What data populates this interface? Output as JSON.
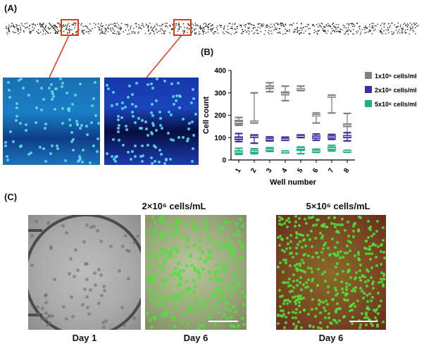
{
  "panels": {
    "a_label": "(A)",
    "b_label": "(B)",
    "c_label": "(C)"
  },
  "colors": {
    "dapi_cell": "#5fe0e6",
    "live_green": "#4ee23a",
    "box_red": "#e43a1a",
    "series_1": "#808080",
    "series_2": "#3a2f9e",
    "series_5": "#1fae86"
  },
  "panel_c": {
    "group1_title": "2×10⁶ cells/mL",
    "group2_title": "5×10⁶ cells/mL",
    "captions": [
      "Day 1",
      "Day 6",
      "Day 6"
    ]
  },
  "chart_data": {
    "type": "box",
    "xlabel": "Well number",
    "ylabel": "Cell count",
    "categories": [
      "1",
      "2",
      "3",
      "4",
      "5",
      "6",
      "7",
      "8"
    ],
    "ylim": [
      0,
      400
    ],
    "yticks": [
      0,
      100,
      200,
      300,
      400
    ],
    "legend_position": "right",
    "series": [
      {
        "name": "1x10⁶ cells/ml",
        "color": "#808080",
        "boxes": [
          {
            "min": 155,
            "q1": 160,
            "median": 168,
            "q3": 178,
            "max": 190
          },
          {
            "min": 165,
            "q1": 168,
            "median": 170,
            "q3": 175,
            "max": 300
          },
          {
            "min": 305,
            "q1": 318,
            "median": 325,
            "q3": 332,
            "max": 345
          },
          {
            "min": 265,
            "q1": 290,
            "median": 296,
            "q3": 305,
            "max": 330
          },
          {
            "min": 310,
            "q1": 312,
            "median": 316,
            "q3": 320,
            "max": 330
          },
          {
            "min": 165,
            "q1": 195,
            "median": 198,
            "q3": 203,
            "max": 210
          },
          {
            "min": 210,
            "q1": 280,
            "median": 285,
            "q3": 288,
            "max": 290
          },
          {
            "min": 100,
            "q1": 148,
            "median": 155,
            "q3": 162,
            "max": 208
          }
        ]
      },
      {
        "name": "2x10⁶ cells/ml",
        "color": "#3a2f9e",
        "boxes": [
          {
            "min": 82,
            "q1": 90,
            "median": 97,
            "q3": 104,
            "max": 118
          },
          {
            "min": 75,
            "q1": 100,
            "median": 106,
            "q3": 110,
            "max": 112
          },
          {
            "min": 85,
            "q1": 88,
            "median": 92,
            "q3": 97,
            "max": 103
          },
          {
            "min": 88,
            "q1": 90,
            "median": 93,
            "q3": 97,
            "max": 102
          },
          {
            "min": 100,
            "q1": 102,
            "median": 106,
            "q3": 110,
            "max": 112
          },
          {
            "min": 88,
            "q1": 96,
            "median": 102,
            "q3": 108,
            "max": 116
          },
          {
            "min": 92,
            "q1": 98,
            "median": 103,
            "q3": 108,
            "max": 114
          },
          {
            "min": 85,
            "q1": 100,
            "median": 105,
            "q3": 110,
            "max": 122
          }
        ]
      },
      {
        "name": "5x10⁶ cells/ml",
        "color": "#1fae86",
        "boxes": [
          {
            "min": 25,
            "q1": 30,
            "median": 35,
            "q3": 42,
            "max": 52
          },
          {
            "min": 28,
            "q1": 33,
            "median": 38,
            "q3": 43,
            "max": 50
          },
          {
            "min": 38,
            "q1": 42,
            "median": 46,
            "q3": 50,
            "max": 55
          },
          {
            "min": 32,
            "q1": 34,
            "median": 36,
            "q3": 38,
            "max": 40
          },
          {
            "min": 28,
            "q1": 42,
            "median": 52,
            "q3": 56,
            "max": 58
          },
          {
            "min": 34,
            "q1": 37,
            "median": 40,
            "q3": 44,
            "max": 48
          },
          {
            "min": 40,
            "q1": 46,
            "median": 52,
            "q3": 58,
            "max": 65
          },
          {
            "min": 35,
            "q1": 37,
            "median": 39,
            "q3": 41,
            "max": 43
          }
        ]
      }
    ]
  }
}
